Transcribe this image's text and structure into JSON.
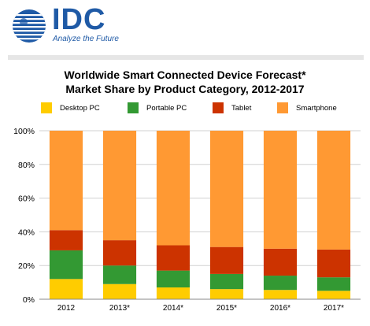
{
  "logo": {
    "name": "IDC",
    "tagline": "Analyze the Future"
  },
  "chart_data": {
    "type": "bar",
    "stacked": true,
    "title": "Worldwide Smart Connected Device Forecast*",
    "subtitle": "Market Share by Product Category, 2012-2017",
    "categories": [
      "2012",
      "2013*",
      "2014*",
      "2015*",
      "2016*",
      "2017*"
    ],
    "series": [
      {
        "name": "Desktop PC",
        "color": "#ffcc00",
        "values": [
          12,
          9,
          7,
          6,
          5.5,
          5
        ]
      },
      {
        "name": "Portable PC",
        "color": "#339933",
        "values": [
          17,
          11,
          10,
          9,
          8.5,
          8
        ]
      },
      {
        "name": "Tablet",
        "color": "#cc3300",
        "values": [
          12,
          15,
          15,
          16,
          16,
          16.5
        ]
      },
      {
        "name": "Smartphone",
        "color": "#ff9933",
        "values": [
          59,
          65,
          68,
          69,
          70,
          70.5
        ]
      }
    ],
    "yticks": [
      "0%",
      "20%",
      "40%",
      "60%",
      "80%",
      "100%"
    ],
    "ylim": [
      0,
      100
    ],
    "legend_position": "top",
    "background": "#ffffff",
    "gridline_color": "#d0d0d0"
  }
}
